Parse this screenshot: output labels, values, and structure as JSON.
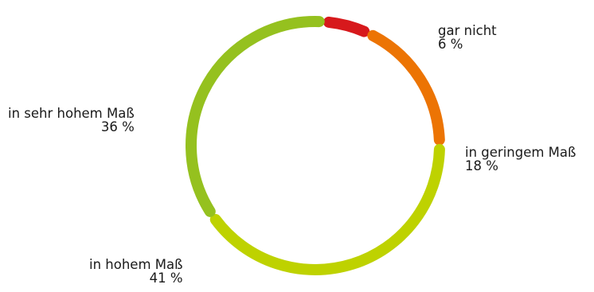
{
  "chart_data": {
    "type": "donut",
    "title": "",
    "slices": [
      {
        "label": "gar nicht",
        "value": 6,
        "display": "6 %",
        "color": "#d7191c"
      },
      {
        "label": "in geringem Maß",
        "value": 18,
        "display": "18 %",
        "color": "#ec7404"
      },
      {
        "label": "in hohem Maß",
        "value": 41,
        "display": "41 %",
        "color": "#bed200"
      },
      {
        "label": "in sehr hohem Maß",
        "value": 36,
        "display": "36 %",
        "color": "#95c11f"
      }
    ],
    "legend": "none",
    "direction": "clockwise",
    "start": "top"
  }
}
